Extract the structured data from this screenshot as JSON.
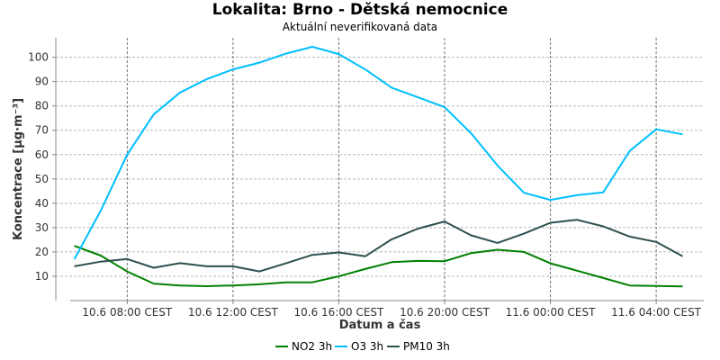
{
  "chart_data": {
    "type": "line",
    "title": "Lokalita: Brno - Dětská nemocnice",
    "subtitle": "Aktuální neverifikovaná data",
    "xlabel": "Datum a čas",
    "ylabel": "Koncentrace [µg·m⁻³]",
    "x_start_hour": 6,
    "x_step_hours": 1,
    "x_ticks": [
      {
        "hour": 8,
        "label": "10.6 08:00 CEST"
      },
      {
        "hour": 12,
        "label": "10.6 12:00 CEST"
      },
      {
        "hour": 16,
        "label": "10.6 16:00 CEST"
      },
      {
        "hour": 20,
        "label": "10.6 20:00 CEST"
      },
      {
        "hour": 24,
        "label": "11.6 00:00 CEST"
      },
      {
        "hour": 28,
        "label": "11.6 04:00 CEST"
      }
    ],
    "xlim": [
      5.3,
      29.8
    ],
    "ylim": [
      0,
      108
    ],
    "y_ticks": [
      10,
      20,
      30,
      40,
      50,
      60,
      70,
      80,
      90,
      100
    ],
    "grid": true,
    "legend_position": "bottom",
    "series": [
      {
        "name": "NO2 3h",
        "color": "#008000",
        "values": [
          22.5,
          18.5,
          12.0,
          7.0,
          6.2,
          5.9,
          6.2,
          6.7,
          7.5,
          7.5,
          10.0,
          13.0,
          15.8,
          16.3,
          16.2,
          19.5,
          20.9,
          20.0,
          15.3,
          12.3,
          9.3,
          6.2,
          6.0,
          5.8
        ]
      },
      {
        "name": "O3 3h",
        "color": "#00bfff",
        "values": [
          17.0,
          37.0,
          60.0,
          76.5,
          85.5,
          91.0,
          95.0,
          97.8,
          101.5,
          104.3,
          101.3,
          95.0,
          87.5,
          83.5,
          79.5,
          68.8,
          55.5,
          44.3,
          41.4,
          43.3,
          44.5,
          61.5,
          70.4,
          68.3
        ]
      },
      {
        "name": "PM10 3h",
        "color": "#2f4f4f",
        "values": [
          14.1,
          16.0,
          17.1,
          13.5,
          15.4,
          14.1,
          14.1,
          12.0,
          15.3,
          18.8,
          19.8,
          18.2,
          25.2,
          29.6,
          32.5,
          26.8,
          23.7,
          27.5,
          32.0,
          33.2,
          30.5,
          26.3,
          24.1,
          18.2
        ]
      }
    ]
  }
}
